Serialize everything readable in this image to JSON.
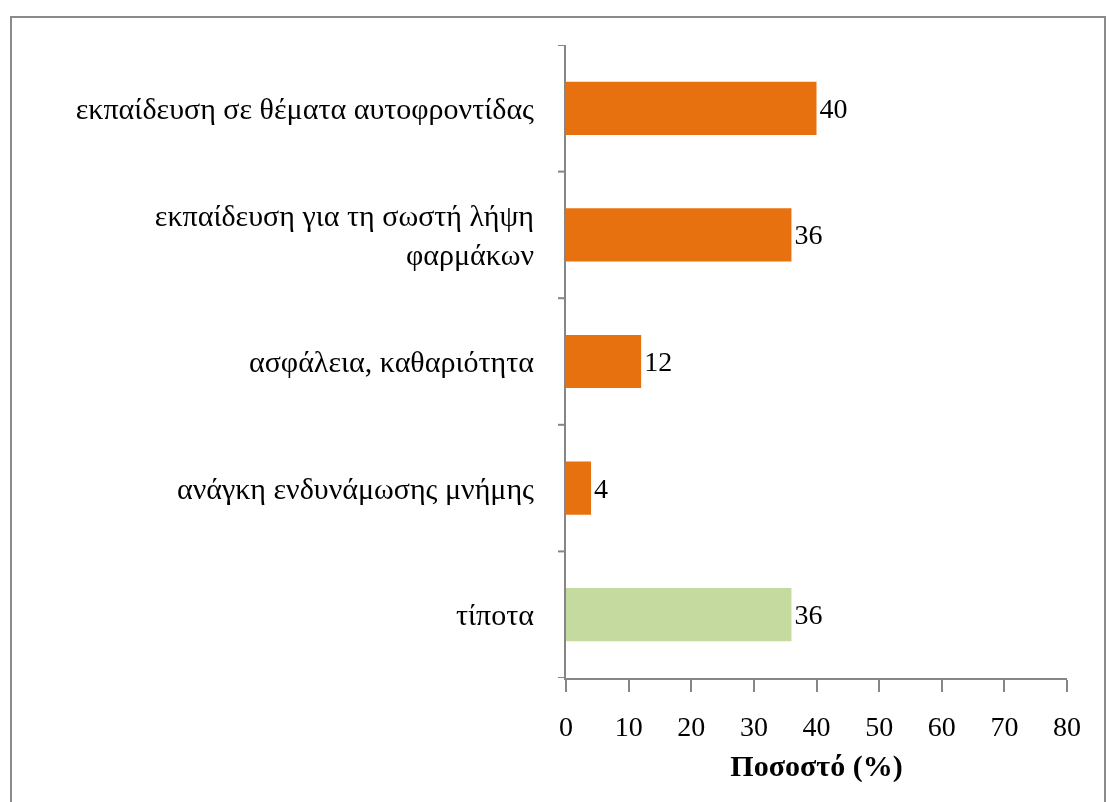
{
  "chart_data": {
    "type": "bar",
    "orientation": "horizontal",
    "categories": [
      "εκπαίδευση σε θέματα αυτοφροντίδας",
      "εκπαίδευση για τη σωστή λήψη φαρμάκων",
      "ασφάλεια, καθαριότητα",
      "ανάγκη ενδυνάμωσης μνήμης",
      "τίποτα"
    ],
    "values": [
      40,
      36,
      12,
      4,
      36
    ],
    "colors": [
      "#e8710f",
      "#e8710f",
      "#e8710f",
      "#e8710f",
      "#c5da9f"
    ],
    "xlabel": "Ποσοστό (%)",
    "xlim": [
      0,
      80
    ],
    "xticks": [
      0,
      10,
      20,
      30,
      40,
      50,
      60,
      70,
      80
    ],
    "data_labels": true
  }
}
